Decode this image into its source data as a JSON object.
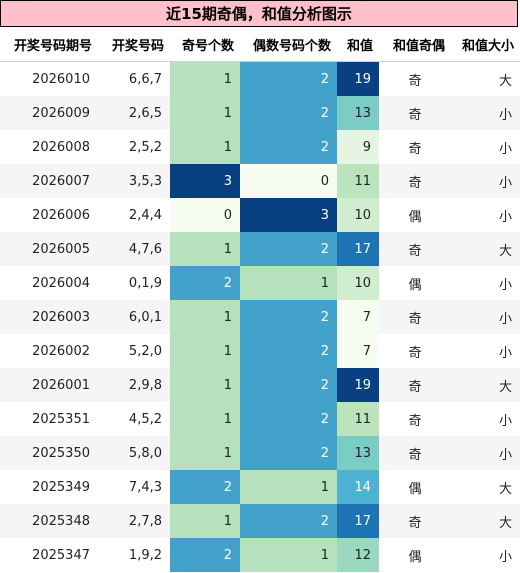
{
  "title": "近15期奇偶，和值分析图示",
  "chart_data": {
    "type": "table",
    "columns": [
      "开奖号码期号",
      "开奖号码",
      "奇号个数",
      "偶数号码个数",
      "和值",
      "和值奇偶",
      "和值大小"
    ],
    "rows": [
      {
        "period": "2026010",
        "numbers": "6,6,7",
        "odd": 1,
        "even": 2,
        "sum": 19,
        "sum_parity": "奇",
        "sum_size": "大"
      },
      {
        "period": "2026009",
        "numbers": "2,6,5",
        "odd": 1,
        "even": 2,
        "sum": 13,
        "sum_parity": "奇",
        "sum_size": "小"
      },
      {
        "period": "2026008",
        "numbers": "2,5,2",
        "odd": 1,
        "even": 2,
        "sum": 9,
        "sum_parity": "奇",
        "sum_size": "小"
      },
      {
        "period": "2026007",
        "numbers": "3,5,3",
        "odd": 3,
        "even": 0,
        "sum": 11,
        "sum_parity": "奇",
        "sum_size": "小"
      },
      {
        "period": "2026006",
        "numbers": "2,4,4",
        "odd": 0,
        "even": 3,
        "sum": 10,
        "sum_parity": "偶",
        "sum_size": "小"
      },
      {
        "period": "2026005",
        "numbers": "4,7,6",
        "odd": 1,
        "even": 2,
        "sum": 17,
        "sum_parity": "奇",
        "sum_size": "大"
      },
      {
        "period": "2026004",
        "numbers": "0,1,9",
        "odd": 2,
        "even": 1,
        "sum": 10,
        "sum_parity": "偶",
        "sum_size": "小"
      },
      {
        "period": "2026003",
        "numbers": "6,0,1",
        "odd": 1,
        "even": 2,
        "sum": 7,
        "sum_parity": "奇",
        "sum_size": "小"
      },
      {
        "period": "2026002",
        "numbers": "5,2,0",
        "odd": 1,
        "even": 2,
        "sum": 7,
        "sum_parity": "奇",
        "sum_size": "小"
      },
      {
        "period": "2026001",
        "numbers": "2,9,8",
        "odd": 1,
        "even": 2,
        "sum": 19,
        "sum_parity": "奇",
        "sum_size": "大"
      },
      {
        "period": "2025351",
        "numbers": "4,5,2",
        "odd": 1,
        "even": 2,
        "sum": 11,
        "sum_parity": "奇",
        "sum_size": "小"
      },
      {
        "period": "2025350",
        "numbers": "5,8,0",
        "odd": 1,
        "even": 2,
        "sum": 13,
        "sum_parity": "奇",
        "sum_size": "小"
      },
      {
        "period": "2025349",
        "numbers": "7,4,3",
        "odd": 2,
        "even": 1,
        "sum": 14,
        "sum_parity": "偶",
        "sum_size": "大"
      },
      {
        "period": "2025348",
        "numbers": "2,7,8",
        "odd": 1,
        "even": 2,
        "sum": 17,
        "sum_parity": "奇",
        "sum_size": "大"
      },
      {
        "period": "2025347",
        "numbers": "1,9,2",
        "odd": 2,
        "even": 1,
        "sum": 12,
        "sum_parity": "偶",
        "sum_size": "小"
      }
    ]
  }
}
